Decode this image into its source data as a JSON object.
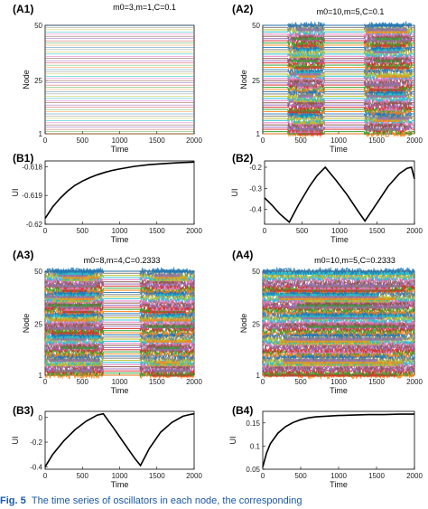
{
  "chart_data": [
    {
      "id": "A1",
      "type": "raster",
      "panel_label": "(A1)",
      "title": "m0=3,m=1,C=0.1",
      "xlabel": "Time",
      "ylabel": "Node",
      "xlim": [
        0,
        2000
      ],
      "ylim": [
        1,
        50
      ],
      "xticks": [
        0,
        500,
        1000,
        1500,
        2000
      ],
      "yticks": [
        1,
        25,
        50
      ],
      "synchronized_intervals": [
        [
          0,
          2000
        ]
      ],
      "desynchronized_intervals": []
    },
    {
      "id": "A2",
      "type": "raster",
      "panel_label": "(A2)",
      "title": "m0=10,m=5,C=0.1",
      "xlabel": "Time",
      "ylabel": "Node",
      "xlim": [
        0,
        2000
      ],
      "ylim": [
        1,
        50
      ],
      "xticks": [
        0,
        500,
        1000,
        1500,
        2000
      ],
      "yticks": [
        1,
        25,
        50
      ],
      "desynchronized_intervals": [
        [
          330,
          810
        ],
        [
          1340,
          1960
        ]
      ]
    },
    {
      "id": "B1",
      "type": "line",
      "panel_label": "(B1)",
      "xlabel": "Time",
      "ylabel": "UI",
      "xlim": [
        0,
        2000
      ],
      "ylim": [
        -0.62,
        -0.6178
      ],
      "xticks": [
        0,
        500,
        1000,
        1500,
        2000
      ],
      "yticks": [
        -0.62,
        -0.619,
        -0.618
      ],
      "ytick_labels": [
        "-0.62",
        "-0.619",
        "-0.618"
      ],
      "series": [
        {
          "x": [
            0,
            100,
            200,
            300,
            400,
            500,
            600,
            700,
            800,
            900,
            1000,
            1200,
            1400,
            1600,
            1800,
            2000
          ],
          "y": [
            -0.6198,
            -0.6194,
            -0.6191,
            -0.61885,
            -0.61865,
            -0.6185,
            -0.61838,
            -0.61828,
            -0.6182,
            -0.61813,
            -0.61808,
            -0.61799,
            -0.61793,
            -0.61789,
            -0.61786,
            -0.61784
          ]
        }
      ]
    },
    {
      "id": "B2",
      "type": "line",
      "panel_label": "(B2)",
      "xlabel": "Time",
      "ylabel": "UI",
      "xlim": [
        0,
        2000
      ],
      "ylim": [
        -0.47,
        -0.17
      ],
      "xticks": [
        0,
        500,
        1000,
        1500,
        2000
      ],
      "yticks": [
        -0.4,
        -0.3,
        -0.2
      ],
      "ytick_labels": [
        "-0.4",
        "-0.3",
        "-0.2"
      ],
      "series": [
        {
          "x": [
            0,
            100,
            200,
            330,
            450,
            600,
            700,
            810,
            950,
            1100,
            1250,
            1340,
            1500,
            1650,
            1800,
            1900,
            1960,
            2000
          ],
          "y": [
            -0.345,
            -0.38,
            -0.42,
            -0.46,
            -0.38,
            -0.29,
            -0.24,
            -0.2,
            -0.26,
            -0.33,
            -0.41,
            -0.455,
            -0.37,
            -0.29,
            -0.23,
            -0.205,
            -0.2,
            -0.255
          ]
        }
      ]
    },
    {
      "id": "A3",
      "type": "raster",
      "panel_label": "(A3)",
      "title": "m0=8,m=4,C=0.2333",
      "xlabel": "Time",
      "ylabel": "Node",
      "xlim": [
        0,
        2000
      ],
      "ylim": [
        1,
        50
      ],
      "xticks": [
        0,
        500,
        1000,
        1500,
        2000
      ],
      "yticks": [
        1,
        25,
        50
      ],
      "desynchronized_intervals": [
        [
          0,
          780
        ],
        [
          1280,
          2000
        ]
      ]
    },
    {
      "id": "A4",
      "type": "raster",
      "panel_label": "(A4)",
      "title": "m0=10,m=5,C=0.2333",
      "xlabel": "Time",
      "ylabel": "Node",
      "xlim": [
        0,
        2000
      ],
      "ylim": [
        1,
        50
      ],
      "xticks": [
        0,
        500,
        1000,
        1500,
        2000
      ],
      "yticks": [
        1,
        25,
        50
      ],
      "desynchronized_intervals": [
        [
          0,
          2000
        ]
      ]
    },
    {
      "id": "B3",
      "type": "line",
      "panel_label": "(B3)",
      "xlabel": "Time",
      "ylabel": "UI",
      "xlim": [
        0,
        2000
      ],
      "ylim": [
        -0.42,
        0.05
      ],
      "xticks": [
        0,
        500,
        1000,
        1500,
        2000
      ],
      "yticks": [
        -0.4,
        -0.2,
        0
      ],
      "ytick_labels": [
        "-0.4",
        "-0.2",
        "0"
      ],
      "series": [
        {
          "x": [
            0,
            100,
            250,
            400,
            550,
            700,
            780,
            900,
            1050,
            1200,
            1280,
            1400,
            1550,
            1700,
            1850,
            1950,
            2000
          ],
          "y": [
            -0.4,
            -0.3,
            -0.19,
            -0.1,
            -0.03,
            0.02,
            0.03,
            -0.07,
            -0.2,
            -0.33,
            -0.39,
            -0.25,
            -0.12,
            -0.04,
            0.01,
            0.025,
            0.03
          ]
        }
      ]
    },
    {
      "id": "B4",
      "type": "line",
      "panel_label": "(B4)",
      "xlabel": "Time",
      "ylabel": "UI",
      "xlim": [
        0,
        2000
      ],
      "ylim": [
        0.05,
        0.175
      ],
      "xticks": [
        0,
        500,
        1000,
        1500,
        2000
      ],
      "yticks": [
        0.05,
        0.1,
        0.15
      ],
      "ytick_labels": [
        "0.05",
        "0.1",
        "0.15"
      ],
      "series": [
        {
          "x": [
            0,
            50,
            100,
            200,
            300,
            400,
            500,
            600,
            700,
            800,
            1000,
            1200,
            1400,
            1600,
            1800,
            2000
          ],
          "y": [
            0.055,
            0.085,
            0.105,
            0.128,
            0.142,
            0.151,
            0.157,
            0.161,
            0.163,
            0.164,
            0.166,
            0.167,
            0.168,
            0.168,
            0.169,
            0.169
          ]
        }
      ]
    }
  ],
  "caption": {
    "prefix": "Fig. 5",
    "text": "The time series of oscillators in each node, the corresponding"
  },
  "colors": {
    "sync_palette": [
      "#1f77b4",
      "#ff7f0e",
      "#2ca02c",
      "#d62728",
      "#9467bd",
      "#8c564b",
      "#e377c2",
      "#17becf",
      "#bcbd22",
      "#7f7f7f"
    ],
    "curve": "#000000",
    "axis": "#000000"
  }
}
